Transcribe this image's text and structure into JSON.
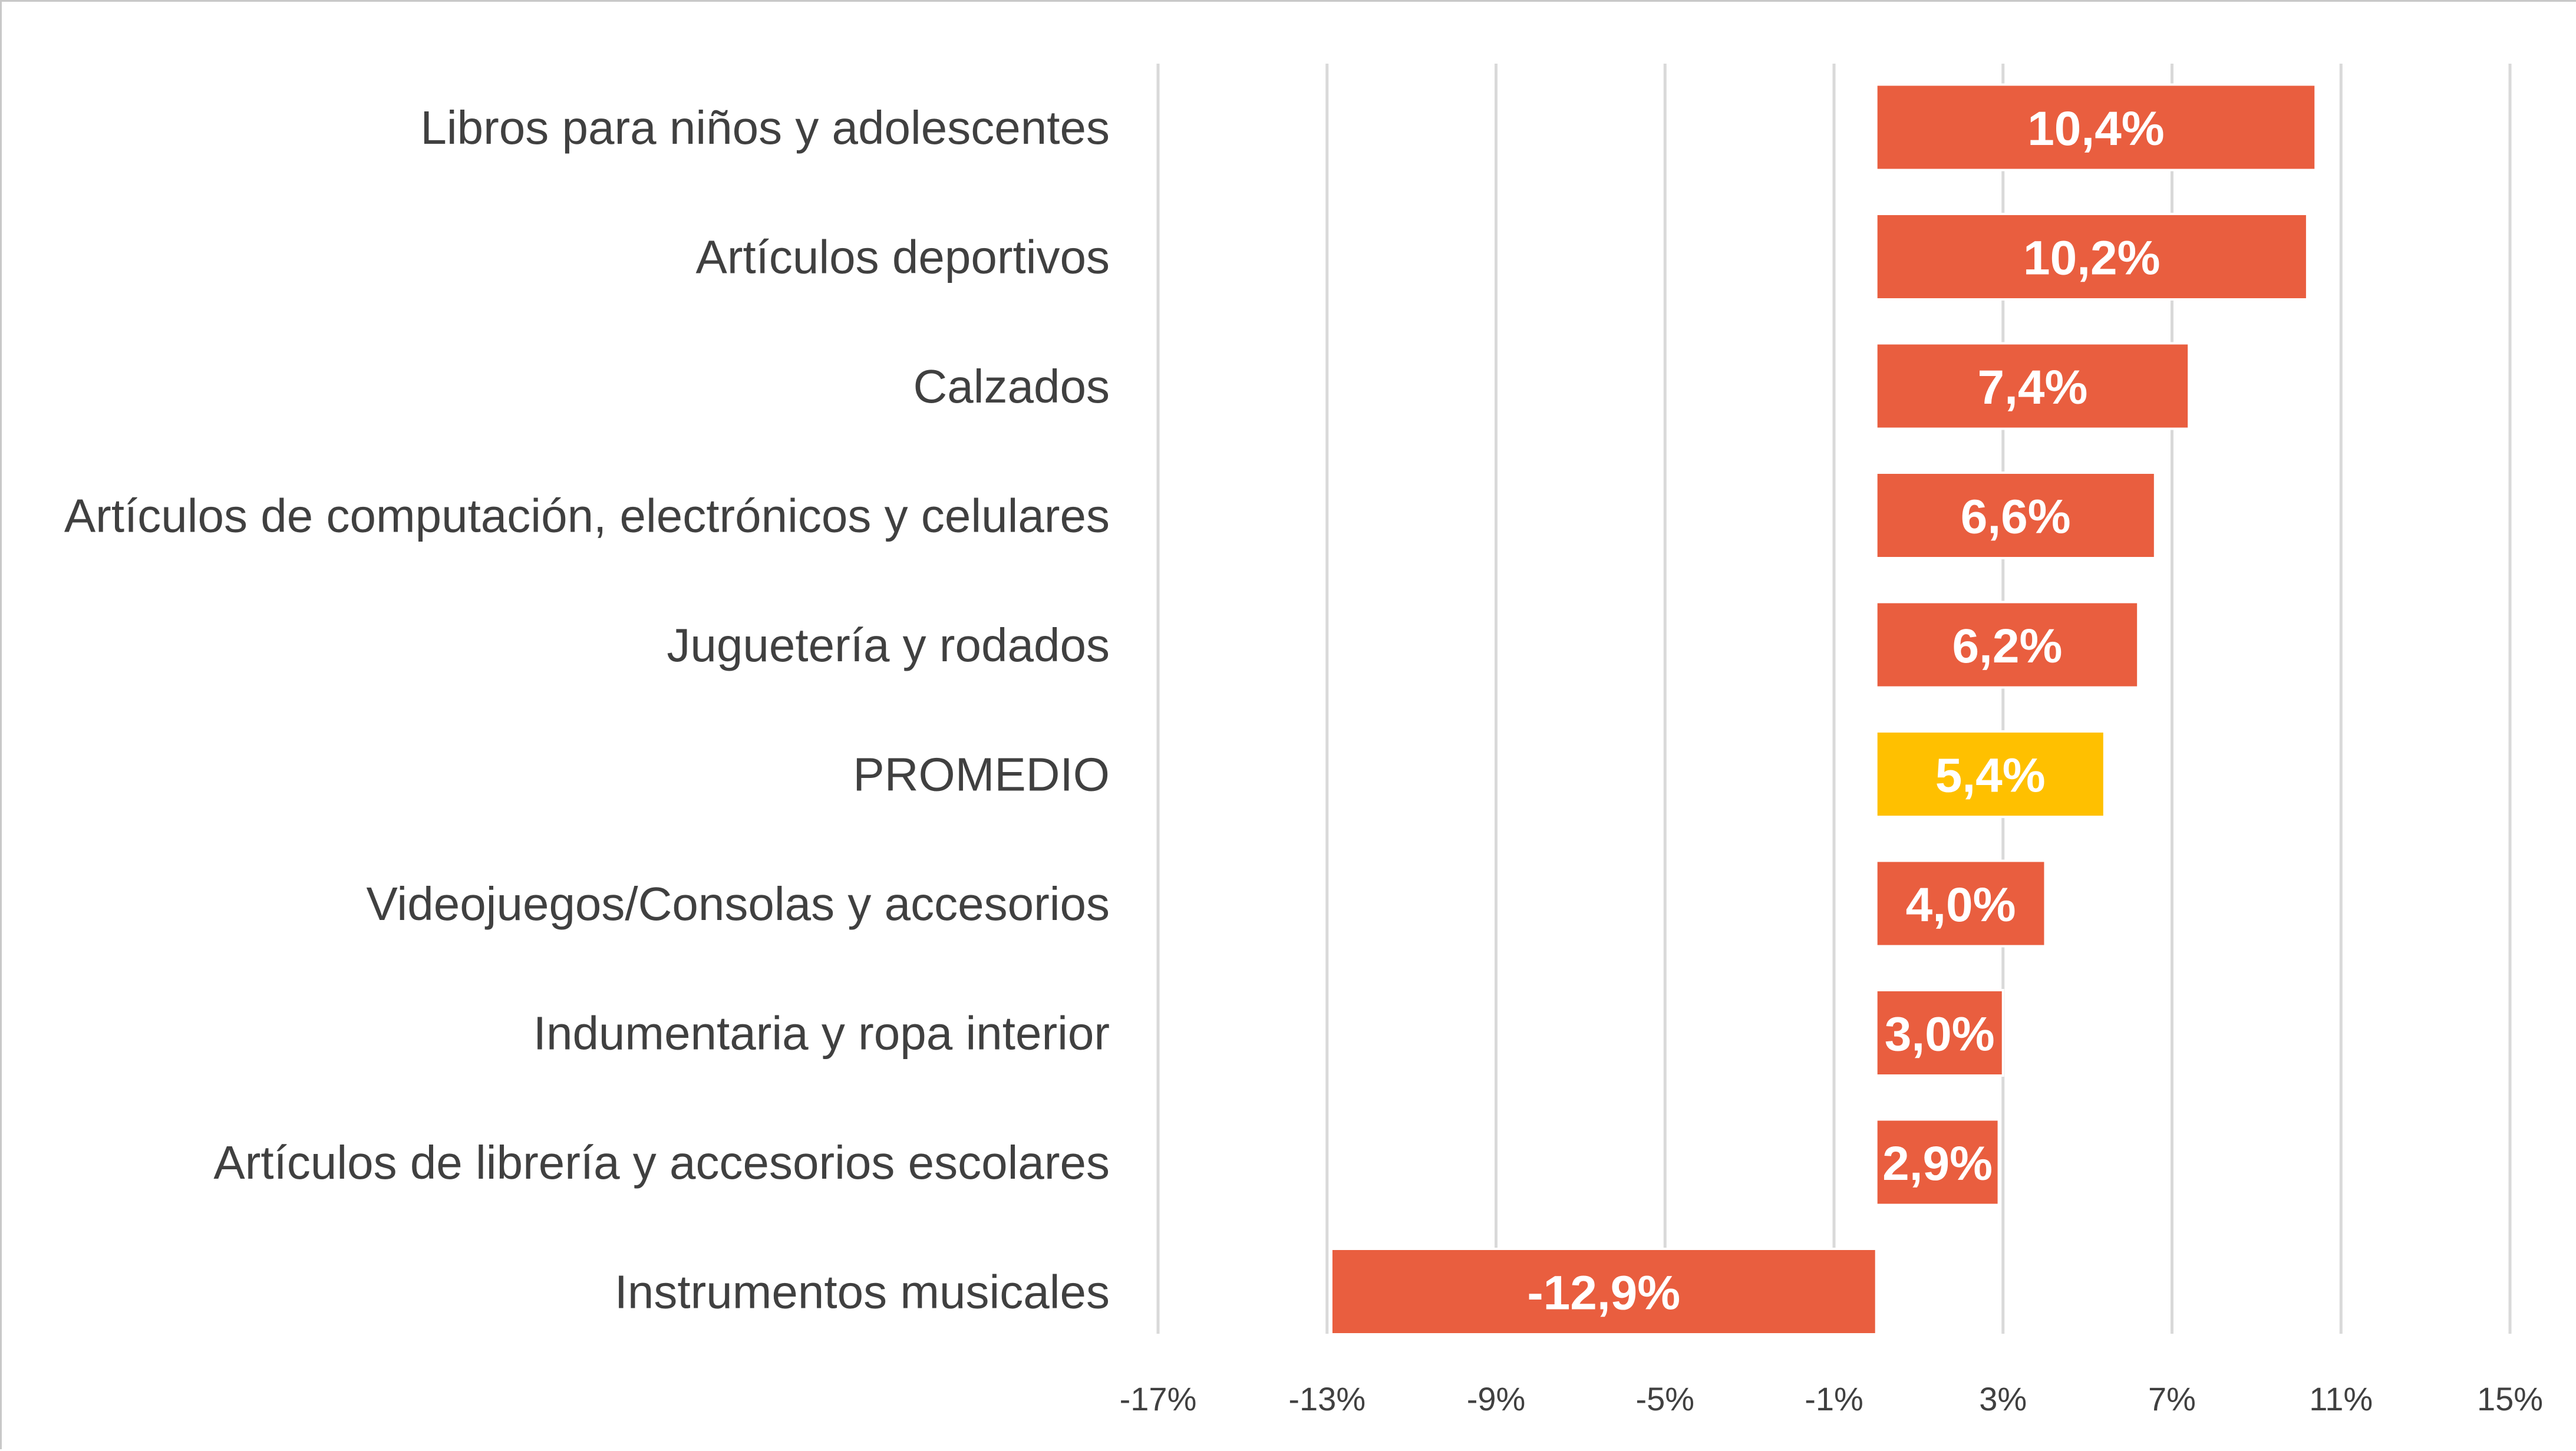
{
  "chart_data": {
    "type": "bar",
    "orientation": "horizontal",
    "categories": [
      "Libros para niños y adolescentes",
      "Artículos deportivos",
      "Calzados",
      "Artículos de computación, electrónicos y celulares",
      "Juguetería y rodados",
      "PROMEDIO",
      "Videojuegos/Consolas y accesorios",
      "Indumentaria y ropa interior",
      "Artículos de librería y accesorios escolares",
      "Instrumentos musicales"
    ],
    "values": [
      10.4,
      10.2,
      7.4,
      6.6,
      6.2,
      5.4,
      4.0,
      3.0,
      2.9,
      -12.9
    ],
    "value_labels": [
      "10,4%",
      "10,2%",
      "7,4%",
      "6,6%",
      "6,2%",
      "5,4%",
      "4,0%",
      "3,0%",
      "2,9%",
      "-12,9%"
    ],
    "x_ticks": [
      -17,
      -13,
      -9,
      -5,
      -1,
      3,
      7,
      11,
      15
    ],
    "x_tick_labels": [
      "-17%",
      "-13%",
      "-9%",
      "-5%",
      "-1%",
      "3%",
      "7%",
      "11%",
      "15%"
    ],
    "xlim": [
      -17,
      15
    ],
    "grid": true,
    "colors": {
      "bar": "#E95E3F",
      "highlight": "#FFC000",
      "highlight_category": "PROMEDIO",
      "grid": "#D9D9D9",
      "text": "#404040"
    },
    "title": "",
    "xlabel": "",
    "ylabel": ""
  }
}
